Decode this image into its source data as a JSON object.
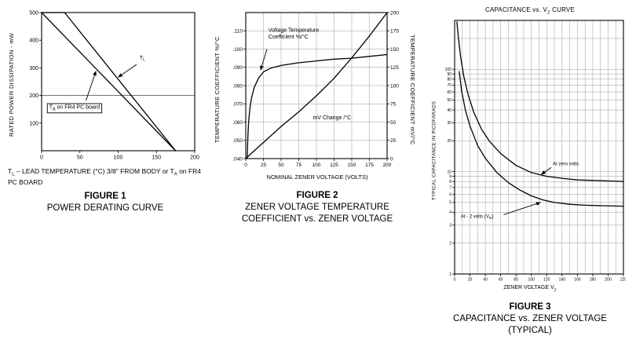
{
  "page": {
    "background": "#ffffff",
    "ink": "#000000",
    "grid_color": "#9a9a9a"
  },
  "chart_data": [
    {
      "id": "fig1",
      "type": "line",
      "figure_label": "FIGURE 1",
      "title": "POWER DERATING CURVE",
      "ylabel": "RATED POWER DISSIPATION - mW",
      "footnote_parts": [
        "T",
        "L",
        " – LEAD TEMPERATURE (°C) 3/8\" FROM BODY or T",
        "A",
        " on FR4 PC BOARD"
      ],
      "xlim": [
        0,
        200
      ],
      "ylim": [
        0,
        500
      ],
      "xticks": [
        0,
        50,
        100,
        150,
        200
      ],
      "ytick_values": [
        100,
        200,
        300,
        400,
        500
      ],
      "hlines": [
        200
      ],
      "grid": false,
      "series": [
        {
          "name": "TL (lead temperature)",
          "points": [
            [
              0,
              500
            ],
            [
              30,
              500
            ],
            [
              175,
              0
            ]
          ]
        },
        {
          "name": "TA on FR4 PC board",
          "points": [
            [
              0,
              500
            ],
            [
              175,
              0
            ]
          ]
        }
      ],
      "annotations": [
        {
          "x": 128,
          "y": 330,
          "anchor": "start",
          "lines": [
            [
              {
                "t": "T"
              },
              {
                "t": "L",
                "sub": true
              }
            ]
          ],
          "arrow": {
            "x1": 124,
            "y1": 312,
            "x2": 100,
            "y2": 266
          }
        },
        {
          "x": 10,
          "y": 152,
          "anchor": "start",
          "box": true,
          "lines": [
            [
              {
                "t": "T"
              },
              {
                "t": "A",
                "sub": true
              },
              {
                "t": " on FR4 PC board"
              }
            ]
          ],
          "arrow": {
            "x1": 58,
            "y1": 182,
            "x2": 71,
            "y2": 288
          }
        }
      ]
    },
    {
      "id": "fig2",
      "type": "line",
      "figure_label": "FIGURE 2",
      "title": "ZENER VOLTAGE TEMPERATURE COEFFICIENT vs. ZENER VOLTAGE",
      "xlabel": "NOMINAL ZENER VOLTAGE (VOLTS)",
      "ylabel_left": "TEMPERATURE COEFFICIENT %/°C",
      "ylabel_right": "TEMPERATURE COEFFICIENT mV/°C",
      "xlim": [
        0,
        200
      ],
      "ylim_left": [
        0.04,
        0.12
      ],
      "ylim_right": [
        0,
        200
      ],
      "xticks": [
        0,
        25,
        50,
        75,
        100,
        125,
        150,
        175,
        200
      ],
      "ytick_values": [
        0.04,
        0.05,
        0.06,
        0.07,
        0.08,
        0.09,
        0.1,
        0.11
      ],
      "ytick_labels": [
        ".040",
        ".050",
        ".060",
        ".070",
        ".080",
        ".090",
        ".100",
        ".110"
      ],
      "ytick_values_right": [
        0,
        25,
        50,
        75,
        100,
        125,
        150,
        175,
        200
      ],
      "grid": true,
      "grid_x": [
        25,
        50,
        75,
        100,
        125,
        150,
        175
      ],
      "grid_y": [
        0.05,
        0.06,
        0.07,
        0.08,
        0.09,
        0.1,
        0.11
      ],
      "series": [
        {
          "name": "Voltage Temperature Coefficient %/°C",
          "axis": "left",
          "points": [
            [
              2,
              0.04
            ],
            [
              3,
              0.052
            ],
            [
              4,
              0.06
            ],
            [
              6,
              0.068
            ],
            [
              8,
              0.073
            ],
            [
              12,
              0.079
            ],
            [
              18,
              0.084
            ],
            [
              25,
              0.0875
            ],
            [
              35,
              0.0895
            ],
            [
              50,
              0.091
            ],
            [
              75,
              0.0925
            ],
            [
              100,
              0.0935
            ],
            [
              125,
              0.0945
            ],
            [
              150,
              0.095
            ],
            [
              175,
              0.096
            ],
            [
              200,
              0.097
            ]
          ]
        },
        {
          "name": "mV Change /°C",
          "axis": "right",
          "points": [
            [
              0,
              0
            ],
            [
              10,
              9
            ],
            [
              25,
              22
            ],
            [
              50,
              44
            ],
            [
              75,
              64
            ],
            [
              100,
              86
            ],
            [
              125,
              110
            ],
            [
              150,
              138
            ],
            [
              175,
              168
            ],
            [
              200,
              200
            ]
          ]
        }
      ],
      "annotations": [
        {
          "x": 32,
          "y": 0.1095,
          "anchor": "start",
          "lines": [
            [
              {
                "t": "Voltage Temperature"
              }
            ],
            [
              {
                "t": "Coefficient %/°C"
              }
            ]
          ],
          "arrow": {
            "x1": 30,
            "y1": 0.1,
            "x2": 21,
            "y2": 0.0885
          }
        },
        {
          "x": 95,
          "y": 0.0615,
          "anchor": "start",
          "lines": [
            [
              {
                "t": "mV Change /°C"
              }
            ]
          ]
        }
      ]
    },
    {
      "id": "fig3",
      "type": "line",
      "y_scale": "log",
      "top_title_parts": [
        "CAPACITANCE vs. V",
        "Z",
        " CURVE"
      ],
      "figure_label": "FIGURE 3",
      "title": "CAPACITANCE vs. ZENER VOLTAGE",
      "caption_sub": "(TYPICAL)",
      "xlabel_parts": [
        "ZENER VOLTAGE V",
        "Z"
      ],
      "ylabel": "TYPICAL CAPACITANCE IN PICOFARADS",
      "xlim": [
        0,
        220
      ],
      "ylim": [
        1,
        300
      ],
      "xticks": [
        0,
        20,
        40,
        60,
        80,
        100,
        120,
        140,
        160,
        180,
        200,
        220
      ],
      "ytick_values": [
        100,
        90,
        80,
        70,
        60,
        50,
        40,
        30,
        20,
        10,
        9,
        8,
        7,
        6,
        5,
        4,
        3,
        2,
        1
      ],
      "grid": true,
      "grid_x": [
        10,
        20,
        30,
        40,
        50,
        60,
        70,
        80,
        90,
        100,
        110,
        120,
        130,
        140,
        150,
        160,
        170,
        180,
        190,
        200,
        210
      ],
      "grid_y": [
        2,
        3,
        4,
        5,
        6,
        7,
        8,
        9,
        10,
        20,
        30,
        40,
        50,
        60,
        70,
        80,
        90,
        100,
        200
      ],
      "series": [
        {
          "name": "At zero volts",
          "points": [
            [
              3,
              290
            ],
            [
              5,
              200
            ],
            [
              8,
              130
            ],
            [
              12,
              85
            ],
            [
              18,
              55
            ],
            [
              25,
              38
            ],
            [
              35,
              26
            ],
            [
              45,
              20
            ],
            [
              60,
              15
            ],
            [
              80,
              11.5
            ],
            [
              100,
              9.8
            ],
            [
              120,
              9
            ],
            [
              140,
              8.6
            ],
            [
              160,
              8.3
            ],
            [
              180,
              8.2
            ],
            [
              200,
              8.1
            ],
            [
              220,
              8
            ]
          ]
        },
        {
          "name": "At - 2 volts (VR)",
          "points": [
            [
              6,
              95
            ],
            [
              9,
              62
            ],
            [
              14,
              40
            ],
            [
              20,
              28
            ],
            [
              30,
              18
            ],
            [
              40,
              13.5
            ],
            [
              55,
              9.8
            ],
            [
              70,
              7.8
            ],
            [
              85,
              6.6
            ],
            [
              100,
              5.8
            ],
            [
              115,
              5.3
            ],
            [
              130,
              5
            ],
            [
              150,
              4.8
            ],
            [
              170,
              4.7
            ],
            [
              190,
              4.65
            ],
            [
              220,
              4.6
            ]
          ]
        }
      ],
      "annotations": [
        {
          "x": 128,
          "y": 11.5,
          "anchor": "start",
          "lines": [
            [
              {
                "t": "At zero volts"
              }
            ]
          ],
          "arrow": {
            "x1": 126,
            "y1": 11,
            "x2": 113,
            "y2": 9.4
          }
        },
        {
          "x": 8,
          "y": 3.55,
          "anchor": "start",
          "lines": [
            [
              {
                "t": "At - 2 volts (V"
              },
              {
                "t": "R",
                "sub": true
              },
              {
                "t": ")"
              }
            ]
          ],
          "arrow": {
            "x1": 64,
            "y1": 3.8,
            "x2": 112,
            "y2": 5.0
          }
        }
      ]
    }
  ]
}
